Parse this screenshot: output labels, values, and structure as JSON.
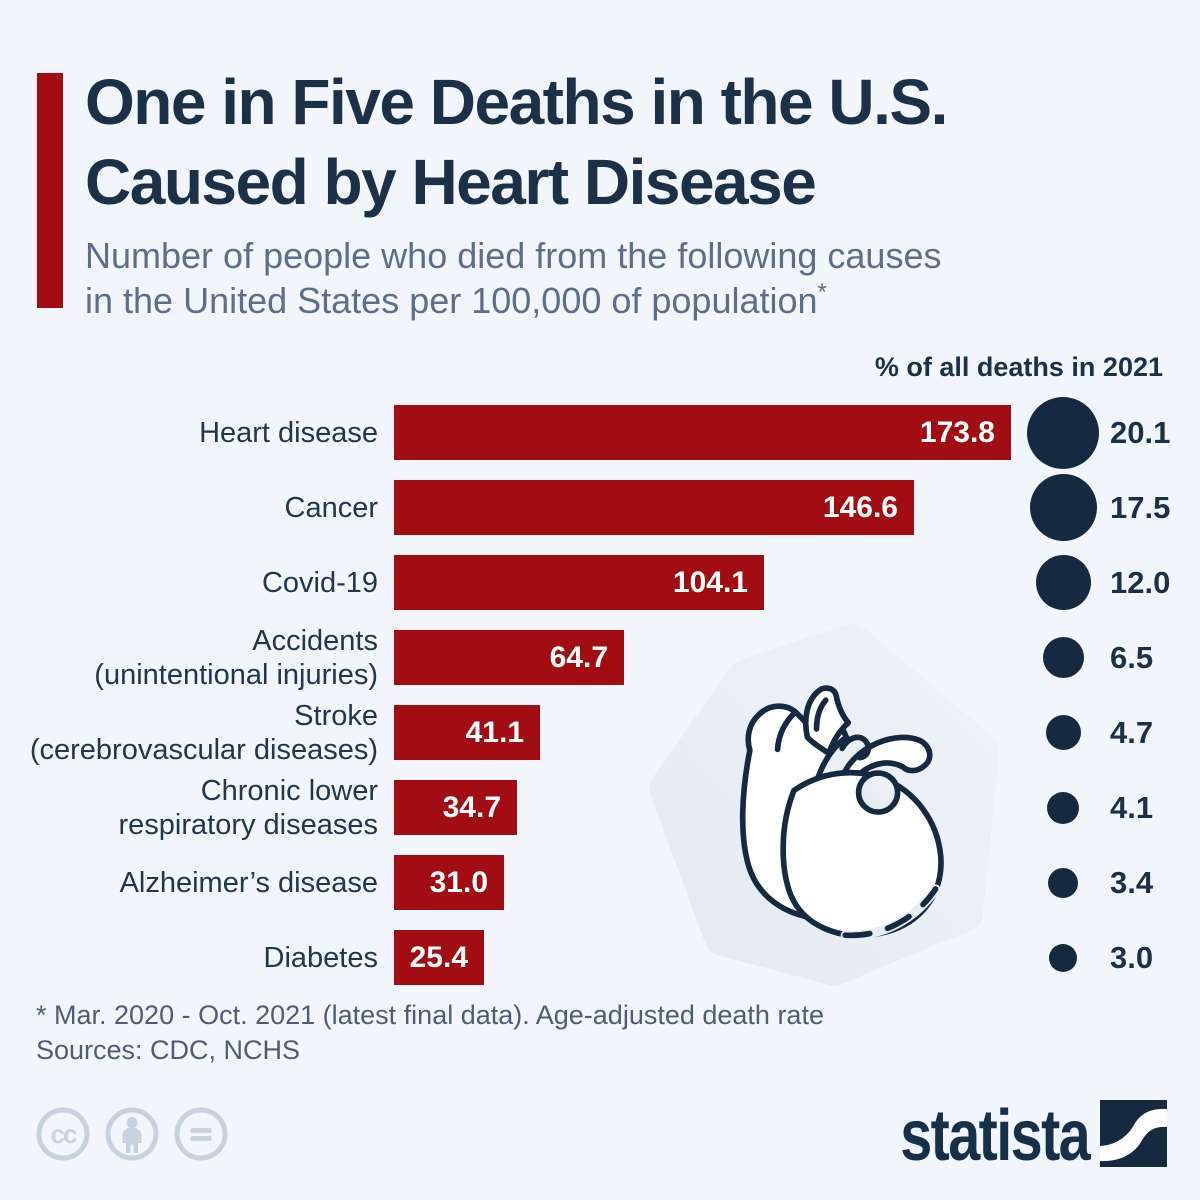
{
  "header": {
    "title": "One in Five Deaths in the U.S.\nCaused by Heart Disease",
    "subtitle": "Number of people who died from the following causes\nin the United States per 100,000 of population",
    "subtitle_note_symbol": "*"
  },
  "chart_data": {
    "type": "bar",
    "orientation": "horizontal",
    "title": "One in Five Deaths in the U.S. Caused by Heart Disease",
    "value_metric_label": "Deaths per 100,000 of population",
    "secondary_metric_label": "% of all deaths in 2021",
    "categories": [
      "Heart disease",
      "Cancer",
      "Covid-19",
      "Accidents\n(unintentional injuries)",
      "Stroke\n(cerebrovascular diseases)",
      "Chronic lower\nrespiratory diseases",
      "Alzheimer’s disease",
      "Diabetes"
    ],
    "values": [
      173.8,
      146.6,
      104.1,
      64.7,
      41.1,
      34.7,
      31.0,
      25.4
    ],
    "secondary_values": [
      20.1,
      17.5,
      12.0,
      6.5,
      4.7,
      4.1,
      3.4,
      3.0
    ],
    "xlim": [
      0,
      180
    ],
    "grid": false,
    "legend": false,
    "value_labels_inside_bars": true,
    "bar_color": "#a10d12",
    "circle_color": "#152a40"
  },
  "footer": {
    "note": "* Mar. 2020 - Oct. 2021 (latest final data). Age-adjusted death rate",
    "sources": "Sources: CDC, NCHS"
  },
  "branding": {
    "logo_text": "statista",
    "license_icons": [
      "cc-icon",
      "attribution-person-icon",
      "equals-icon"
    ]
  },
  "colors": {
    "background": "#f2f5f9",
    "accent_red": "#a10d12",
    "navy": "#152a40",
    "title_navy": "#1c3048",
    "subtitle_gray": "#5d6e88",
    "footnote_gray": "#4e5d74",
    "license_gray": "#c8d2de"
  }
}
